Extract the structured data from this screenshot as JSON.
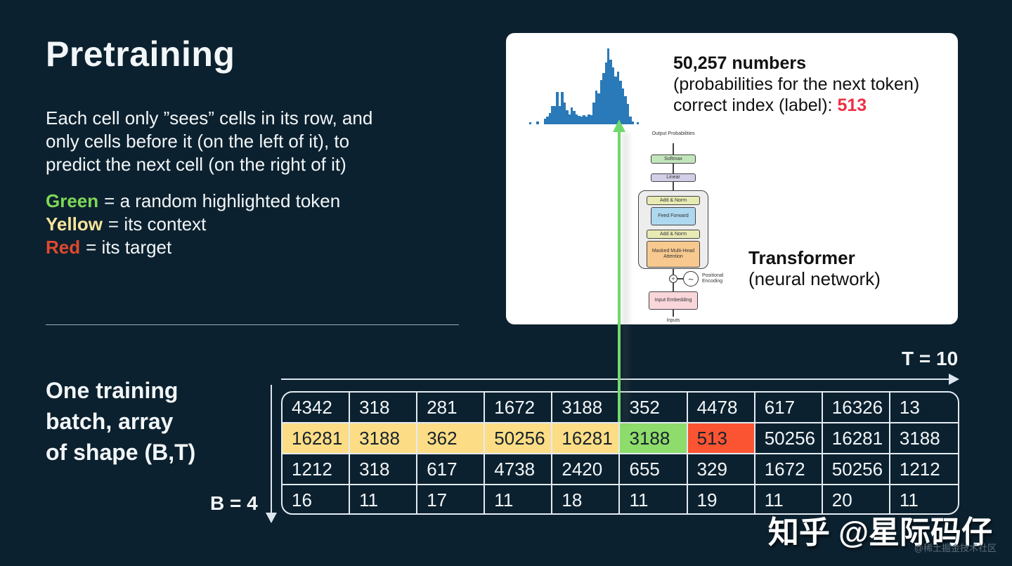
{
  "slide": {
    "title": "Pretraining",
    "intro_lines": [
      "Each cell only ”sees” cells in its row, and",
      "only cells before it (on the left of it), to",
      "predict the next cell (on the right of it)"
    ],
    "legend": [
      {
        "term": "Green",
        "color": "#7ed957",
        "desc": "= a random highlighted token"
      },
      {
        "term": "Yellow",
        "color": "#f7e39b",
        "desc": "= its context"
      },
      {
        "term": "Red",
        "color": "#e0492e",
        "desc": "= its target"
      }
    ],
    "batch_label_lines": [
      "One training",
      "batch, array",
      "of shape (B,T)"
    ],
    "b_label": "B = 4",
    "t_label": "T = 10"
  },
  "card": {
    "headline": "50,257 numbers",
    "line2": "(probabilities for the next token)",
    "line3_prefix": "correct index (label): ",
    "label_value": "513",
    "transformer_title": "Transformer",
    "transformer_sub": "(neural network)"
  },
  "diagram": {
    "output_label": "Output Probabilities",
    "softmax": "Softmax",
    "linear": "Linear",
    "add_norm": "Add & Norm",
    "feed_forward": "Feed Forward",
    "masked_mha": "Masked Multi-Head Attention",
    "positional_encoding": "Positional Encoding",
    "input_embedding": "Input Embedding",
    "inputs": "Inputs",
    "plus_glyph": "+",
    "sine_glyph": "~"
  },
  "batch": {
    "rows": [
      [
        "4342",
        "318",
        "281",
        "1672",
        "3188",
        "352",
        "4478",
        "617",
        "16326",
        "13"
      ],
      [
        "16281",
        "3188",
        "362",
        "50256",
        "16281",
        "3188",
        "513",
        "50256",
        "16281",
        "3188"
      ],
      [
        "1212",
        "318",
        "617",
        "4738",
        "2420",
        "655",
        "329",
        "1672",
        "50256",
        "1212"
      ],
      [
        "16",
        "11",
        "17",
        "11",
        "18",
        "11",
        "19",
        "11",
        "20",
        "11"
      ]
    ],
    "highlights": [
      {
        "row": 1,
        "col": 0,
        "type": "context"
      },
      {
        "row": 1,
        "col": 1,
        "type": "context"
      },
      {
        "row": 1,
        "col": 2,
        "type": "context"
      },
      {
        "row": 1,
        "col": 3,
        "type": "context"
      },
      {
        "row": 1,
        "col": 4,
        "type": "context"
      },
      {
        "row": 1,
        "col": 5,
        "type": "token"
      },
      {
        "row": 1,
        "col": 6,
        "type": "target"
      }
    ]
  },
  "chart_data": {
    "type": "bar",
    "title": "",
    "xlabel": "",
    "ylabel": "",
    "legend": "none",
    "grid": false,
    "bar_color": "#2a79b8",
    "description": "bimodal histogram of next-token probabilities, relative bar heights 0-100",
    "values": [
      3,
      0,
      0,
      4,
      0,
      0,
      7,
      10,
      15,
      24,
      24,
      42,
      24,
      42,
      28,
      18,
      13,
      22,
      17,
      13,
      11,
      10,
      12,
      10,
      13,
      12,
      28,
      44,
      40,
      57,
      66,
      80,
      98,
      84,
      74,
      62,
      68,
      56,
      46,
      36,
      26,
      10,
      4,
      0,
      3
    ]
  },
  "watermark": {
    "main": "知乎 @星际码仔",
    "sub": "@稀土掘金技术社区"
  },
  "colors": {
    "background": "#0c212f",
    "card": "#ffffff",
    "histogram_blue": "#2a79b8",
    "cell_context": "#fcdd85",
    "cell_token": "#8edc6b",
    "cell_target": "#fb5433",
    "legend_green": "#7ed957",
    "legend_yellow": "#f7e39b",
    "legend_red": "#e0492e",
    "label_red": "#ed2f44",
    "arrow_green": "#70d96b"
  }
}
